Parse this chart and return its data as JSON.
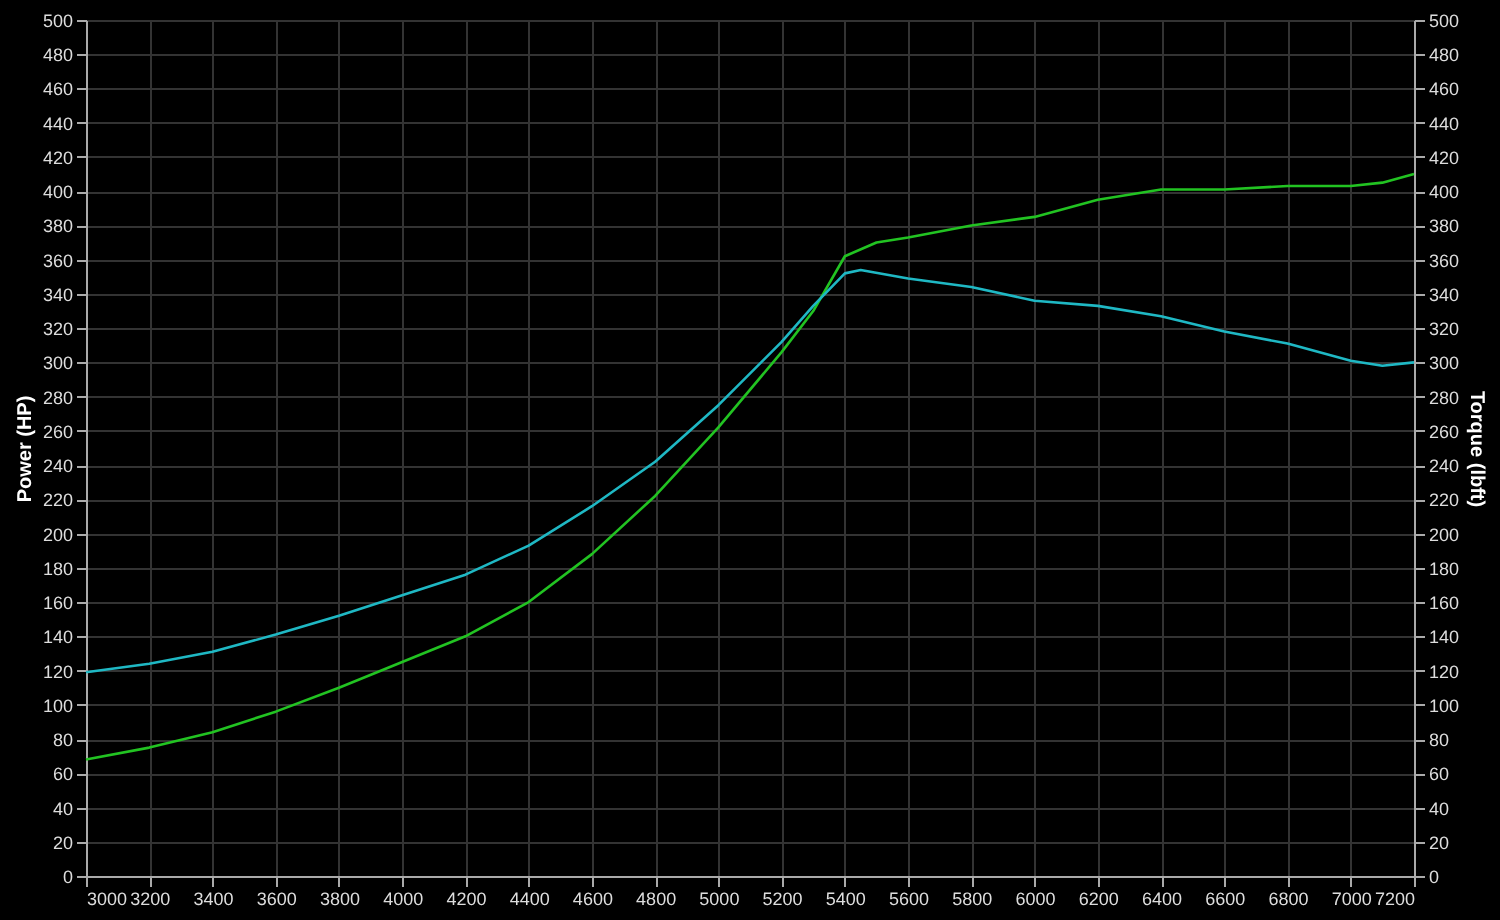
{
  "chart_data": {
    "type": "line",
    "ylabel": "Power (HP)",
    "y2label": "Torque (lbft)",
    "xlim": [
      3000,
      7200
    ],
    "xticks": [
      3000,
      3200,
      3400,
      3600,
      3800,
      4000,
      4200,
      4400,
      4600,
      4800,
      5000,
      5200,
      5400,
      5600,
      5800,
      6000,
      6200,
      6400,
      6600,
      6800,
      7000,
      7200
    ],
    "ylim": [
      0,
      500
    ],
    "yticks": [
      0,
      20,
      40,
      60,
      80,
      100,
      120,
      140,
      160,
      180,
      200,
      220,
      240,
      260,
      280,
      300,
      320,
      340,
      360,
      380,
      400,
      420,
      440,
      460,
      480,
      500
    ],
    "y2lim": [
      0,
      500
    ],
    "y2ticks": [
      0,
      20,
      40,
      60,
      80,
      100,
      120,
      140,
      160,
      180,
      200,
      220,
      240,
      260,
      280,
      300,
      320,
      340,
      360,
      380,
      400,
      420,
      440,
      460,
      480,
      500
    ],
    "grid": true,
    "marker": "none",
    "line_style": "solid",
    "series": [
      {
        "color": "#22c322",
        "x": [
          3000,
          3200,
          3400,
          3600,
          3800,
          4000,
          4200,
          4400,
          4600,
          4800,
          5000,
          5200,
          5300,
          5400,
          5500,
          5600,
          5800,
          6000,
          6200,
          6400,
          6600,
          6800,
          7000,
          7100,
          7200
        ],
        "values": [
          68,
          75,
          84,
          96,
          110,
          125,
          140,
          160,
          188,
          222,
          262,
          306,
          330,
          362,
          370,
          373,
          380,
          385,
          395,
          401,
          401,
          403,
          403,
          405,
          410
        ]
      },
      {
        "color": "#1fb8c4",
        "axis": "y2",
        "x": [
          3000,
          3200,
          3400,
          3600,
          3800,
          4000,
          4200,
          4400,
          4600,
          4800,
          5000,
          5200,
          5300,
          5400,
          5450,
          5600,
          5800,
          6000,
          6200,
          6400,
          6600,
          6800,
          7000,
          7100,
          7200
        ],
        "values": [
          119,
          124,
          131,
          141,
          152,
          164,
          176,
          193,
          216,
          242,
          275,
          312,
          333,
          352,
          354,
          349,
          344,
          336,
          333,
          327,
          318,
          311,
          301,
          298,
          300
        ]
      }
    ]
  }
}
